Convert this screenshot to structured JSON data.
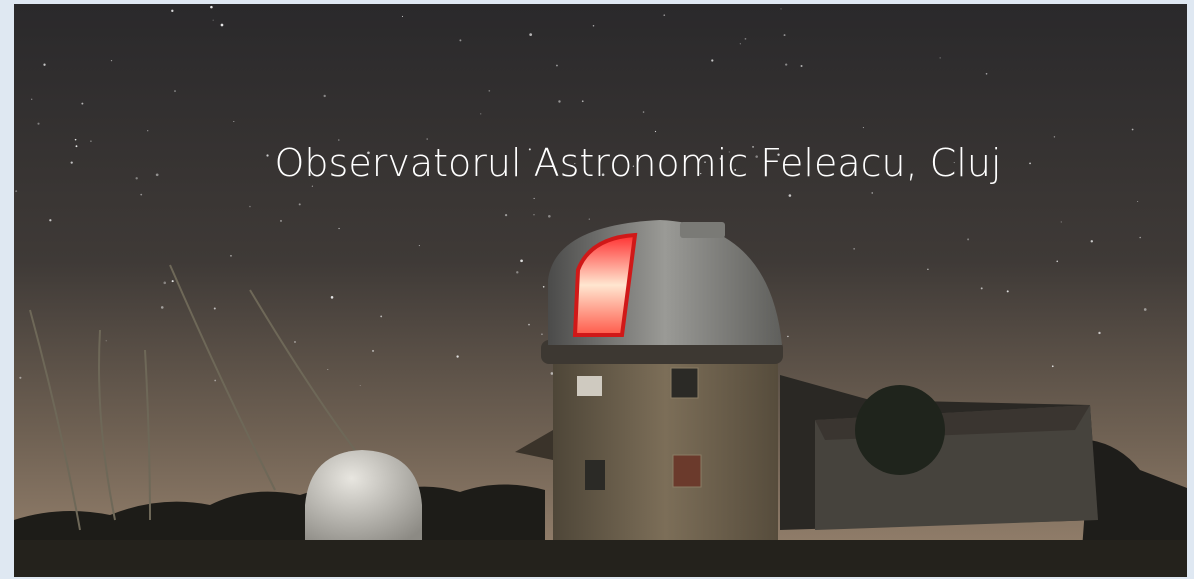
{
  "title": "Observatorul Astronomic Feleacu, Cluj"
}
